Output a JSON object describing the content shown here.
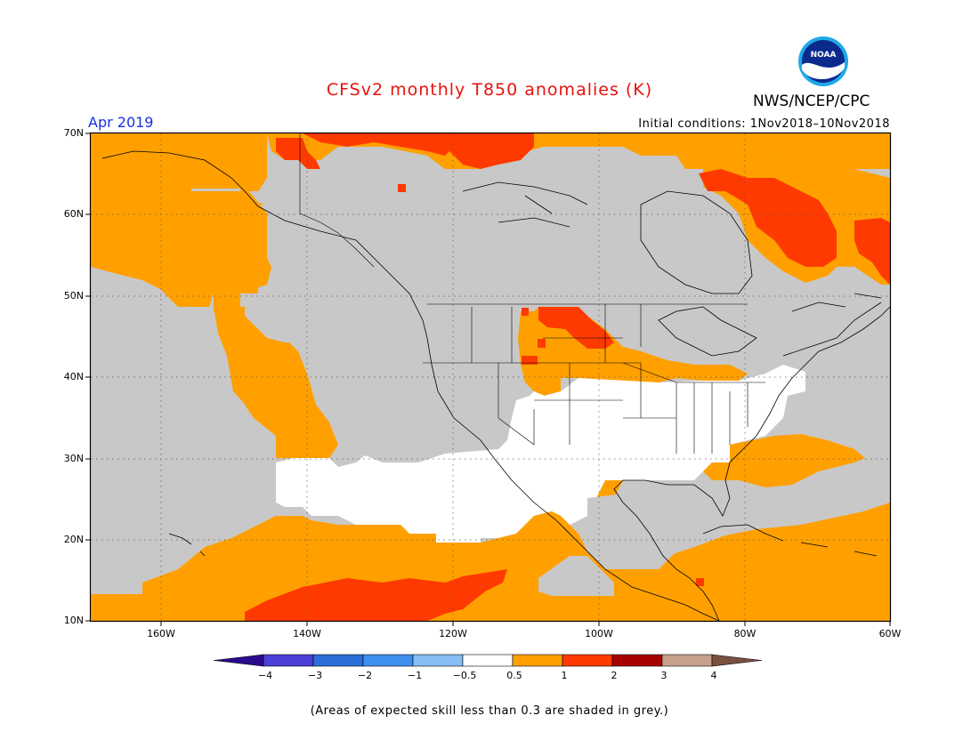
{
  "title": "CFSv2 monthly T850 anomalies (K)",
  "organization": "NWS/NCEP/CPC",
  "logo_text": "NOAA",
  "forecast_month": "Apr 2019",
  "initial_conditions": "Initial conditions: 1Nov2018–10Nov2018",
  "lat_labels": [
    "70N",
    "60N",
    "50N",
    "40N",
    "30N",
    "20N",
    "10N"
  ],
  "lon_labels": [
    "160W",
    "140W",
    "120W",
    "100W",
    "80W",
    "60W"
  ],
  "colorbar": {
    "ticks": [
      "−4",
      "−3",
      "−2",
      "−1",
      "−0.5",
      "0.5",
      "1",
      "2",
      "3",
      "4"
    ],
    "colors": [
      "#2b0a8f",
      "#4a3fd6",
      "#2c6ed8",
      "#3f8ff0",
      "#86bdf5",
      "#ffffff",
      "#ffa000",
      "#ff3a00",
      "#a60000",
      "#c8a08c",
      "#7a5040"
    ]
  },
  "map_colors": {
    "skill_grey": "#c8c8c8",
    "neutral": "#ffffff",
    "warm_0p5_1": "#ffa000",
    "warm_1_2": "#ff3a00"
  },
  "footnote": "(Areas of expected skill less than 0.3 are shaded in grey.)"
}
